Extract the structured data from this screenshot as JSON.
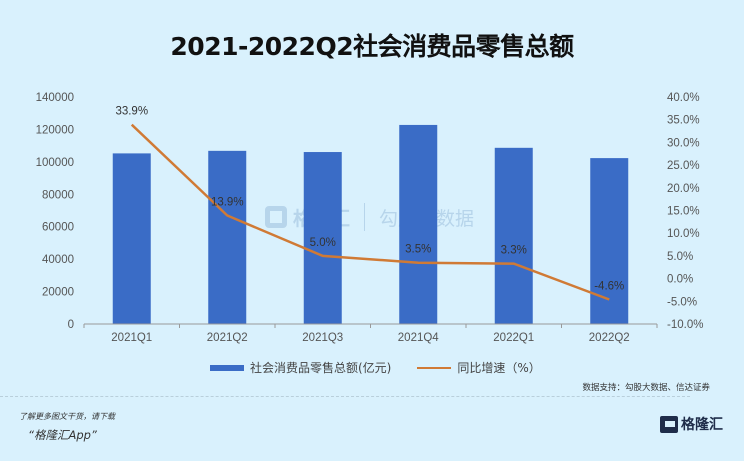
{
  "title": "2021-2022Q2社会消费品零售总额",
  "chart_data": {
    "type": "bar+line",
    "title": "2021-2022Q2社会消费品零售总额",
    "categories": [
      "2021Q1",
      "2021Q2",
      "2021Q3",
      "2021Q4",
      "2022Q1",
      "2022Q2"
    ],
    "series": [
      {
        "name": "社会消费品零售总额(亿元)",
        "type": "bar",
        "axis": "left",
        "color": "#3a6cc6",
        "values": [
          105221,
          106792,
          106055,
          122770,
          108659,
          102312
        ]
      },
      {
        "name": "同比增速（%）",
        "type": "line",
        "axis": "right",
        "color": "#d07a35",
        "values": [
          33.9,
          13.9,
          5.0,
          3.5,
          3.3,
          -4.6
        ],
        "labels": [
          "33.9%",
          "13.9%",
          "5.0%",
          "3.5%",
          "3.3%",
          "-4.6%"
        ]
      }
    ],
    "left_axis": {
      "ylim": [
        0,
        140000
      ],
      "ticks": [
        "0",
        "20000",
        "40000",
        "60000",
        "80000",
        "100000",
        "120000",
        "140000"
      ]
    },
    "right_axis": {
      "ylim": [
        -10,
        40
      ],
      "ticks": [
        "-10.0%",
        "-5.0%",
        "0.0%",
        "5.0%",
        "10.0%",
        "15.0%",
        "20.0%",
        "25.0%",
        "30.0%",
        "35.0%",
        "40.0%"
      ]
    },
    "xlabel": "",
    "ylabel": "",
    "grid": false,
    "legend_position": "bottom"
  },
  "legend": {
    "bar_label": "社会消费品零售总额(亿元)",
    "line_label": "同比增速（%）"
  },
  "source": "数据支持：勾股大数据、信达证券",
  "watermark": {
    "brand": "格隆汇",
    "data_brand": "勾股大数据"
  },
  "footer": {
    "promo_line1": "了解更多图文干货，请下载",
    "promo_line2": "“格隆汇App”",
    "brand": "格隆汇"
  }
}
